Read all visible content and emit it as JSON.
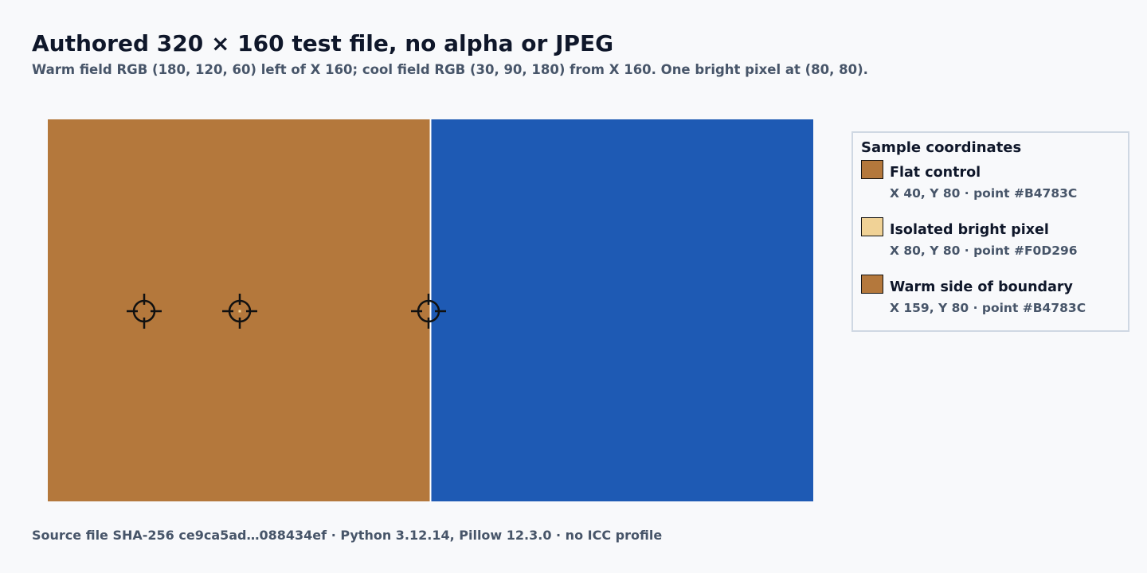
{
  "header": {
    "title": "Authored 320 × 160 test file, no alpha or JPEG",
    "subtitle": "Warm field RGB (180, 120, 60) left of X 160; cool field RGB (30, 90, 180) from X 160. One bright pixel at (80, 80)."
  },
  "image": {
    "warm_color": "#B4783C",
    "cool_color": "#1E5AB4",
    "bright_color": "#F0D296"
  },
  "legend": {
    "title": "Sample coordinates",
    "items": [
      {
        "label": "Flat control",
        "detail": "X 40, Y 80 · point #B4783C",
        "color": "#B4783C"
      },
      {
        "label": "Isolated bright pixel",
        "detail": "X 80, Y 80 · point #F0D296",
        "color": "#F0D296"
      },
      {
        "label": "Warm side of boundary",
        "detail": "X 159, Y 80 · point #B4783C",
        "color": "#B4783C"
      }
    ]
  },
  "footer": "Source file SHA-256 ce9ca5ad…088434ef · Python 3.12.14, Pillow 12.3.0 · no ICC profile"
}
